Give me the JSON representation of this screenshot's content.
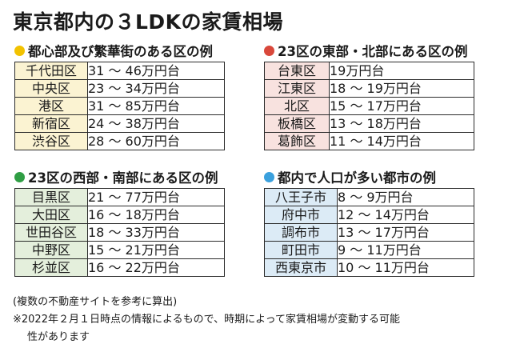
{
  "title": "東京都内の３LDKの家賃相場",
  "colors": {
    "yellow_dot": "#f2c200",
    "red_dot": "#d9483b",
    "green_dot": "#2f9e44",
    "blue_dot": "#3aa0dd",
    "yellow_bg": "#fbf3d2",
    "red_bg": "#f8e2df",
    "green_bg": "#e4efdc",
    "blue_bg": "#dcebf6"
  },
  "sections": [
    {
      "heading": "都心部及び繁華街のある区の例",
      "rows": [
        {
          "area": "千代田区",
          "value": "31 〜 46万円台"
        },
        {
          "area": "中央区",
          "value": "23 〜 34万円台"
        },
        {
          "area": "港区",
          "value": "31 〜 85万円台"
        },
        {
          "area": "新宿区",
          "value": "24 〜 38万円台"
        },
        {
          "area": "渋谷区",
          "value": "28 〜 60万円台"
        }
      ]
    },
    {
      "heading": "23区の東部・北部にある区の例",
      "rows": [
        {
          "area": "台東区",
          "value": "19万円台"
        },
        {
          "area": "江東区",
          "value": "18 〜 19万円台"
        },
        {
          "area": "北区",
          "value": "15 〜 17万円台"
        },
        {
          "area": "板橋区",
          "value": "13 〜 18万円台"
        },
        {
          "area": "葛飾区",
          "value": "11 〜 14万円台"
        }
      ]
    },
    {
      "heading": "23区の西部・南部にある区の例",
      "rows": [
        {
          "area": "目黒区",
          "value": "21 〜 77万円台"
        },
        {
          "area": "大田区",
          "value": "16 〜 18万円台"
        },
        {
          "area": "世田谷区",
          "value": "18 〜 33万円台"
        },
        {
          "area": "中野区",
          "value": "15 〜 21万円台"
        },
        {
          "area": "杉並区",
          "value": "16 〜 22万円台"
        }
      ]
    },
    {
      "heading": "都内で人口が多い都市の例",
      "rows": [
        {
          "area": "八王子市",
          "value": "8 〜 9万円台"
        },
        {
          "area": "府中市",
          "value": "12 〜 14万円台"
        },
        {
          "area": "調布市",
          "value": "13 〜 17万円台"
        },
        {
          "area": "町田市",
          "value": "9 〜 11万円台"
        },
        {
          "area": "西東京市",
          "value": "10 〜 11万円台"
        }
      ]
    }
  ],
  "notes": {
    "line1": "(複数の不動産サイトを参考に算出)",
    "line2": "※2022年２月１日時点の情報によるもので、時期によって家賃相場が変動する可能",
    "line3": "性があります"
  }
}
